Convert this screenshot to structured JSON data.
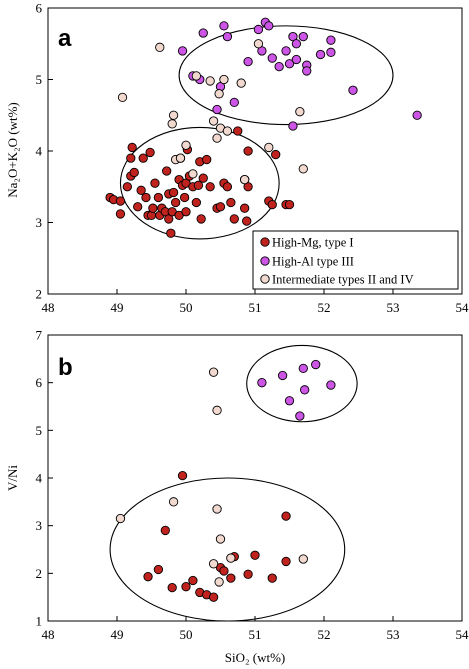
{
  "colors": {
    "high_mg": "#c0231d",
    "high_al": "#cc55e6",
    "intermediate": "#f2d9cf",
    "outline": "#000000"
  },
  "chart_data": [
    {
      "type": "scatter",
      "panel_letter": "a",
      "xlabel": "",
      "ylabel": "Na₂O+K₂O (wt%)",
      "xlim": [
        48,
        54
      ],
      "ylim": [
        2,
        6
      ],
      "xticks": [
        48,
        49,
        50,
        51,
        52,
        53,
        54
      ],
      "yticks": [
        2,
        3,
        4,
        5,
        6
      ],
      "legend": {
        "placement": "bottom-right",
        "entries": [
          "High-Mg, type I",
          "High-Al type III",
          "Intermediate types II and IV"
        ]
      },
      "ellipses": [
        {
          "group": "high-Mg field",
          "cx": 50.2,
          "cy": 3.55,
          "rx": 1.15,
          "ry": 0.78
        },
        {
          "group": "high-Al field",
          "cx": 51.45,
          "cy": 5.06,
          "rx": 1.55,
          "ry": 0.69
        }
      ],
      "series": [
        {
          "name": "High-Mg, type I",
          "color": "#c0231d",
          "points": [
            [
              48.9,
              3.35
            ],
            [
              48.95,
              3.32
            ],
            [
              49.05,
              3.3
            ],
            [
              49.05,
              3.12
            ],
            [
              49.15,
              3.5
            ],
            [
              49.2,
              3.65
            ],
            [
              49.2,
              3.9
            ],
            [
              49.22,
              4.05
            ],
            [
              49.25,
              3.7
            ],
            [
              49.3,
              3.22
            ],
            [
              49.35,
              3.45
            ],
            [
              49.38,
              3.9
            ],
            [
              49.42,
              3.35
            ],
            [
              49.45,
              3.1
            ],
            [
              49.48,
              3.98
            ],
            [
              49.5,
              3.1
            ],
            [
              49.52,
              3.2
            ],
            [
              49.55,
              3.55
            ],
            [
              49.6,
              3.35
            ],
            [
              49.62,
              3.1
            ],
            [
              49.65,
              3.2
            ],
            [
              49.7,
              3.15
            ],
            [
              49.72,
              3.72
            ],
            [
              49.75,
              3.4
            ],
            [
              49.75,
              3.05
            ],
            [
              49.78,
              2.85
            ],
            [
              49.8,
              3.15
            ],
            [
              49.82,
              3.42
            ],
            [
              49.85,
              3.28
            ],
            [
              49.9,
              3.1
            ],
            [
              49.9,
              3.6
            ],
            [
              49.92,
              3.9
            ],
            [
              49.95,
              3.52
            ],
            [
              49.98,
              3.35
            ],
            [
              50.0,
              3.15
            ],
            [
              50.0,
              3.55
            ],
            [
              50.02,
              4.02
            ],
            [
              50.05,
              3.65
            ],
            [
              50.1,
              3.5
            ],
            [
              50.15,
              3.28
            ],
            [
              50.18,
              3.52
            ],
            [
              50.2,
              3.85
            ],
            [
              50.22,
              3.05
            ],
            [
              50.25,
              3.62
            ],
            [
              50.3,
              3.88
            ],
            [
              50.35,
              3.5
            ],
            [
              50.45,
              3.2
            ],
            [
              50.5,
              3.22
            ],
            [
              50.55,
              3.55
            ],
            [
              50.6,
              3.5
            ],
            [
              50.65,
              3.28
            ],
            [
              50.7,
              3.05
            ],
            [
              50.75,
              4.28
            ],
            [
              50.85,
              3.6
            ],
            [
              50.85,
              3.2
            ],
            [
              50.88,
              3.02
            ],
            [
              50.9,
              4.0
            ],
            [
              50.9,
              3.5
            ],
            [
              51.2,
              3.3
            ],
            [
              51.25,
              3.25
            ],
            [
              51.3,
              3.95
            ],
            [
              51.45,
              3.25
            ],
            [
              51.5,
              3.25
            ]
          ]
        },
        {
          "name": "High-Al type III",
          "color": "#cc55e6",
          "points": [
            [
              49.95,
              5.4
            ],
            [
              50.1,
              5.05
            ],
            [
              50.2,
              5.0
            ],
            [
              50.25,
              5.65
            ],
            [
              50.45,
              4.58
            ],
            [
              50.5,
              4.9
            ],
            [
              50.55,
              5.75
            ],
            [
              50.6,
              5.6
            ],
            [
              50.7,
              4.68
            ],
            [
              50.9,
              5.25
            ],
            [
              51.05,
              5.7
            ],
            [
              51.1,
              5.4
            ],
            [
              51.15,
              5.8
            ],
            [
              51.2,
              5.75
            ],
            [
              51.25,
              5.3
            ],
            [
              51.35,
              5.18
            ],
            [
              51.45,
              5.4
            ],
            [
              51.5,
              5.22
            ],
            [
              51.55,
              4.35
            ],
            [
              51.55,
              5.6
            ],
            [
              51.6,
              5.5
            ],
            [
              51.6,
              5.28
            ],
            [
              51.7,
              5.6
            ],
            [
              51.75,
              5.2
            ],
            [
              51.75,
              5.12
            ],
            [
              51.95,
              5.35
            ],
            [
              52.1,
              5.38
            ],
            [
              52.1,
              5.55
            ],
            [
              52.42,
              4.85
            ],
            [
              53.35,
              4.5
            ]
          ]
        },
        {
          "name": "Intermediate types II and IV",
          "color": "#f2d9cf",
          "points": [
            [
              49.08,
              4.75
            ],
            [
              49.62,
              5.45
            ],
            [
              49.8,
              4.38
            ],
            [
              49.82,
              4.5
            ],
            [
              49.85,
              3.88
            ],
            [
              49.92,
              3.9
            ],
            [
              50.0,
              4.08
            ],
            [
              50.1,
              3.68
            ],
            [
              50.15,
              5.05
            ],
            [
              50.35,
              4.98
            ],
            [
              50.4,
              4.42
            ],
            [
              50.45,
              4.18
            ],
            [
              50.48,
              4.8
            ],
            [
              50.5,
              4.32
            ],
            [
              50.55,
              5.0
            ],
            [
              50.6,
              4.28
            ],
            [
              50.8,
              4.95
            ],
            [
              50.85,
              3.6
            ],
            [
              51.05,
              5.5
            ],
            [
              51.2,
              4.05
            ],
            [
              51.65,
              4.55
            ],
            [
              51.7,
              3.75
            ]
          ]
        }
      ]
    },
    {
      "type": "scatter",
      "panel_letter": "b",
      "xlabel": "SiO₂ (wt%)",
      "ylabel": "V/Ni",
      "xlim": [
        48,
        54
      ],
      "ylim": [
        1,
        7
      ],
      "xticks": [
        48,
        49,
        50,
        51,
        52,
        53,
        54
      ],
      "yticks": [
        1,
        2,
        3,
        4,
        5,
        6,
        7
      ],
      "ellipses": [
        {
          "group": "high-Mg field",
          "cx": 50.6,
          "cy": 2.5,
          "rx": 1.7,
          "ry": 1.5
        },
        {
          "group": "high-Al field",
          "cx": 51.68,
          "cy": 5.98,
          "rx": 0.8,
          "ry": 0.8
        }
      ],
      "series": [
        {
          "name": "High-Mg, type I",
          "color": "#c0231d",
          "points": [
            [
              49.45,
              1.93
            ],
            [
              49.6,
              2.08
            ],
            [
              49.7,
              2.9
            ],
            [
              49.8,
              1.7
            ],
            [
              49.95,
              4.05
            ],
            [
              50.0,
              1.72
            ],
            [
              50.1,
              1.85
            ],
            [
              50.2,
              1.6
            ],
            [
              50.3,
              1.55
            ],
            [
              50.4,
              1.5
            ],
            [
              50.5,
              2.12
            ],
            [
              50.55,
              2.05
            ],
            [
              50.65,
              1.9
            ],
            [
              50.7,
              2.35
            ],
            [
              50.9,
              1.98
            ],
            [
              51.0,
              2.38
            ],
            [
              51.25,
              1.9
            ],
            [
              51.45,
              2.25
            ],
            [
              51.45,
              3.2
            ]
          ]
        },
        {
          "name": "High-Al type III",
          "color": "#cc55e6",
          "points": [
            [
              51.1,
              6.0
            ],
            [
              51.4,
              6.15
            ],
            [
              51.5,
              5.62
            ],
            [
              51.65,
              5.3
            ],
            [
              51.7,
              6.3
            ],
            [
              51.72,
              5.85
            ],
            [
              51.88,
              6.38
            ],
            [
              52.1,
              5.95
            ]
          ]
        },
        {
          "name": "Intermediate types II and IV",
          "color": "#f2d9cf",
          "points": [
            [
              49.05,
              3.15
            ],
            [
              49.82,
              3.5
            ],
            [
              50.4,
              6.22
            ],
            [
              50.45,
              5.42
            ],
            [
              50.45,
              3.35
            ],
            [
              50.5,
              2.72
            ],
            [
              50.48,
              1.82
            ],
            [
              50.65,
              2.32
            ],
            [
              50.4,
              2.2
            ],
            [
              51.7,
              2.3
            ]
          ]
        }
      ]
    }
  ]
}
